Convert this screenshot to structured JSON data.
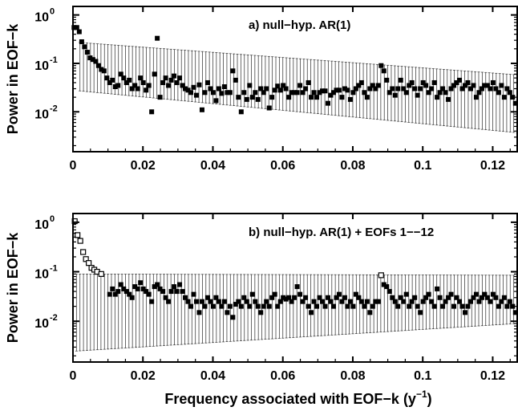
{
  "chart_data": [
    {
      "type": "scatter",
      "title": "a) null−hyp. AR(1)",
      "ylabel": "Power in EOF−k",
      "xlabel": "",
      "xlim": [
        0,
        0.127
      ],
      "ylim": [
        0.0015,
        1.5
      ],
      "yscale": "log",
      "xticks": [
        "0",
        "0.02",
        "0.04",
        "0.06",
        "0.08",
        "0.1",
        "0.12"
      ],
      "yticks": [
        "10",
        "10",
        "10"
      ],
      "ytick_exponents": [
        "0",
        "-1",
        "-2"
      ],
      "grid": false,
      "legend": "none",
      "error_band": {
        "x_start": 0.002,
        "x_end": 0.127,
        "lower_start": 0.027,
        "lower_end": 0.0037,
        "upper_start": 0.27,
        "upper_end": 0.058,
        "step": 0.001
      },
      "points": [
        [
          0.0003,
          0.55
        ],
        [
          0.0011,
          0.55
        ],
        [
          0.0018,
          0.45
        ],
        [
          0.0025,
          0.28
        ],
        [
          0.0033,
          0.22
        ],
        [
          0.0041,
          0.17
        ],
        [
          0.0049,
          0.13
        ],
        [
          0.0057,
          0.12
        ],
        [
          0.0065,
          0.11
        ],
        [
          0.0073,
          0.09
        ],
        [
          0.0081,
          0.075
        ],
        [
          0.0089,
          0.07
        ],
        [
          0.0097,
          0.05
        ],
        [
          0.0105,
          0.04
        ],
        [
          0.0113,
          0.045
        ],
        [
          0.0121,
          0.033
        ],
        [
          0.0129,
          0.035
        ],
        [
          0.0137,
          0.06
        ],
        [
          0.0145,
          0.05
        ],
        [
          0.0153,
          0.04
        ],
        [
          0.0161,
          0.045
        ],
        [
          0.0169,
          0.03
        ],
        [
          0.0177,
          0.035
        ],
        [
          0.0185,
          0.03
        ],
        [
          0.0193,
          0.05
        ],
        [
          0.0201,
          0.04
        ],
        [
          0.0209,
          0.028
        ],
        [
          0.0217,
          0.035
        ],
        [
          0.0225,
          0.01
        ],
        [
          0.0233,
          0.06
        ],
        [
          0.0241,
          0.33
        ],
        [
          0.0249,
          0.02
        ],
        [
          0.0257,
          0.04
        ],
        [
          0.0265,
          0.05
        ],
        [
          0.0273,
          0.035
        ],
        [
          0.0281,
          0.045
        ],
        [
          0.0289,
          0.055
        ],
        [
          0.0297,
          0.04
        ],
        [
          0.0305,
          0.05
        ],
        [
          0.0313,
          0.035
        ],
        [
          0.0321,
          0.03
        ],
        [
          0.0329,
          0.028
        ],
        [
          0.0337,
          0.025
        ],
        [
          0.0345,
          0.032
        ],
        [
          0.0353,
          0.022
        ],
        [
          0.0361,
          0.036
        ],
        [
          0.0369,
          0.011
        ],
        [
          0.0377,
          0.025
        ],
        [
          0.0385,
          0.04
        ],
        [
          0.0393,
          0.03
        ],
        [
          0.0401,
          0.025
        ],
        [
          0.0409,
          0.017
        ],
        [
          0.0417,
          0.03
        ],
        [
          0.0425,
          0.024
        ],
        [
          0.0433,
          0.033
        ],
        [
          0.0441,
          0.025
        ],
        [
          0.0449,
          0.025
        ],
        [
          0.0457,
          0.07
        ],
        [
          0.0465,
          0.045
        ],
        [
          0.0473,
          0.02
        ],
        [
          0.0481,
          0.01
        ],
        [
          0.0489,
          0.025
        ],
        [
          0.0497,
          0.018
        ],
        [
          0.0505,
          0.035
        ],
        [
          0.0513,
          0.02
        ],
        [
          0.0521,
          0.025
        ],
        [
          0.0529,
          0.018
        ],
        [
          0.0537,
          0.03
        ],
        [
          0.0545,
          0.025
        ],
        [
          0.0553,
          0.03
        ],
        [
          0.0561,
          0.012
        ],
        [
          0.0569,
          0.02
        ],
        [
          0.0577,
          0.028
        ],
        [
          0.0585,
          0.034
        ],
        [
          0.0593,
          0.028
        ],
        [
          0.0601,
          0.035
        ],
        [
          0.0609,
          0.03
        ],
        [
          0.0617,
          0.02
        ],
        [
          0.0625,
          0.025
        ],
        [
          0.0633,
          0.025
        ],
        [
          0.0641,
          0.025
        ],
        [
          0.0649,
          0.035
        ],
        [
          0.0657,
          0.025
        ],
        [
          0.0665,
          0.03
        ],
        [
          0.0673,
          0.04
        ],
        [
          0.0681,
          0.02
        ],
        [
          0.0689,
          0.025
        ],
        [
          0.0697,
          0.02
        ],
        [
          0.0705,
          0.025
        ],
        [
          0.0713,
          0.027
        ],
        [
          0.0721,
          0.027
        ],
        [
          0.0729,
          0.015
        ],
        [
          0.0737,
          0.022
        ],
        [
          0.0745,
          0.025
        ],
        [
          0.0753,
          0.028
        ],
        [
          0.0761,
          0.028
        ],
        [
          0.0769,
          0.02
        ],
        [
          0.0777,
          0.03
        ],
        [
          0.0785,
          0.028
        ],
        [
          0.0793,
          0.018
        ],
        [
          0.0801,
          0.025
        ],
        [
          0.0809,
          0.03
        ],
        [
          0.0817,
          0.035
        ],
        [
          0.0825,
          0.04
        ],
        [
          0.0833,
          0.025
        ],
        [
          0.0841,
          0.02
        ],
        [
          0.0849,
          0.03
        ],
        [
          0.0857,
          0.035
        ],
        [
          0.0865,
          0.03
        ],
        [
          0.0873,
          0.035
        ],
        [
          0.0881,
          0.09
        ],
        [
          0.0889,
          0.07
        ],
        [
          0.0897,
          0.045
        ],
        [
          0.0905,
          0.025
        ],
        [
          0.0913,
          0.03
        ],
        [
          0.0921,
          0.022
        ],
        [
          0.0929,
          0.03
        ],
        [
          0.0937,
          0.045
        ],
        [
          0.0945,
          0.03
        ],
        [
          0.0953,
          0.025
        ],
        [
          0.0961,
          0.035
        ],
        [
          0.0969,
          0.04
        ],
        [
          0.0977,
          0.03
        ],
        [
          0.0985,
          0.022
        ],
        [
          0.0993,
          0.03
        ],
        [
          0.1001,
          0.04
        ],
        [
          0.1009,
          0.035
        ],
        [
          0.1017,
          0.025
        ],
        [
          0.1025,
          0.03
        ],
        [
          0.1033,
          0.04
        ],
        [
          0.1041,
          0.02
        ],
        [
          0.1049,
          0.025
        ],
        [
          0.1057,
          0.03
        ],
        [
          0.1065,
          0.025
        ],
        [
          0.1073,
          0.018
        ],
        [
          0.1081,
          0.03
        ],
        [
          0.1089,
          0.035
        ],
        [
          0.1097,
          0.04
        ],
        [
          0.1105,
          0.045
        ],
        [
          0.1113,
          0.03
        ],
        [
          0.1121,
          0.035
        ],
        [
          0.1129,
          0.04
        ],
        [
          0.1137,
          0.03
        ],
        [
          0.1145,
          0.035
        ],
        [
          0.1153,
          0.02
        ],
        [
          0.1161,
          0.025
        ],
        [
          0.1169,
          0.03
        ],
        [
          0.1177,
          0.035
        ],
        [
          0.1185,
          0.035
        ],
        [
          0.1193,
          0.03
        ],
        [
          0.1201,
          0.04
        ],
        [
          0.1209,
          0.03
        ],
        [
          0.1217,
          0.025
        ],
        [
          0.1225,
          0.035
        ],
        [
          0.1233,
          0.02
        ],
        [
          0.1241,
          0.03
        ],
        [
          0.1249,
          0.025
        ],
        [
          0.1257,
          0.02
        ],
        [
          0.1265,
          0.015
        ]
      ],
      "open_points": []
    },
    {
      "type": "scatter",
      "title": "b) null−hyp. AR(1) + EOFs 1−−12",
      "ylabel": "Power in EOF−k",
      "xlabel": "Frequency associated with EOF−k (y",
      "xlabel_superscript": "−1",
      "xlabel_suffix": ")",
      "xlim": [
        0,
        0.127
      ],
      "ylim": [
        0.0015,
        1.5
      ],
      "yscale": "log",
      "xticks": [
        "0",
        "0.02",
        "0.04",
        "0.06",
        "0.08",
        "0.1",
        "0.12"
      ],
      "yticks": [
        "10",
        "10",
        "10"
      ],
      "ytick_exponents": [
        "0",
        "-1",
        "-2"
      ],
      "grid": false,
      "legend": "none",
      "error_band": {
        "x_start": 0.001,
        "x_end": 0.127,
        "lower_start": 0.0025,
        "lower_end": 0.009,
        "upper_start": 0.09,
        "upper_end": 0.085,
        "step": 0.001
      },
      "points": [
        [
          0.0105,
          0.035
        ],
        [
          0.0113,
          0.045
        ],
        [
          0.0121,
          0.035
        ],
        [
          0.0129,
          0.04
        ],
        [
          0.0137,
          0.055
        ],
        [
          0.0145,
          0.045
        ],
        [
          0.0153,
          0.04
        ],
        [
          0.0161,
          0.035
        ],
        [
          0.0169,
          0.03
        ],
        [
          0.0177,
          0.05
        ],
        [
          0.0185,
          0.045
        ],
        [
          0.0193,
          0.06
        ],
        [
          0.0201,
          0.045
        ],
        [
          0.0209,
          0.04
        ],
        [
          0.0217,
          0.035
        ],
        [
          0.0225,
          0.025
        ],
        [
          0.0233,
          0.05
        ],
        [
          0.0241,
          0.055
        ],
        [
          0.0249,
          0.045
        ],
        [
          0.0257,
          0.04
        ],
        [
          0.0265,
          0.03
        ],
        [
          0.0273,
          0.025
        ],
        [
          0.0281,
          0.04
        ],
        [
          0.0289,
          0.05
        ],
        [
          0.0297,
          0.04
        ],
        [
          0.0305,
          0.055
        ],
        [
          0.0313,
          0.04
        ],
        [
          0.0321,
          0.03
        ],
        [
          0.0329,
          0.025
        ],
        [
          0.0337,
          0.02
        ],
        [
          0.0345,
          0.035
        ],
        [
          0.0353,
          0.025
        ],
        [
          0.0361,
          0.015
        ],
        [
          0.0369,
          0.025
        ],
        [
          0.0377,
          0.02
        ],
        [
          0.0385,
          0.03
        ],
        [
          0.0393,
          0.025
        ],
        [
          0.0401,
          0.02
        ],
        [
          0.0409,
          0.03
        ],
        [
          0.0417,
          0.025
        ],
        [
          0.0425,
          0.02
        ],
        [
          0.0433,
          0.025
        ],
        [
          0.0441,
          0.015
        ],
        [
          0.0449,
          0.02
        ],
        [
          0.0457,
          0.012
        ],
        [
          0.0465,
          0.022
        ],
        [
          0.0473,
          0.025
        ],
        [
          0.0481,
          0.02
        ],
        [
          0.0489,
          0.03
        ],
        [
          0.0497,
          0.025
        ],
        [
          0.0505,
          0.02
        ],
        [
          0.0513,
          0.035
        ],
        [
          0.0521,
          0.025
        ],
        [
          0.0529,
          0.02
        ],
        [
          0.0537,
          0.015
        ],
        [
          0.0545,
          0.02
        ],
        [
          0.0553,
          0.025
        ],
        [
          0.0561,
          0.02
        ],
        [
          0.0569,
          0.03
        ],
        [
          0.0577,
          0.035
        ],
        [
          0.0585,
          0.02
        ],
        [
          0.0593,
          0.025
        ],
        [
          0.0601,
          0.03
        ],
        [
          0.0609,
          0.028
        ],
        [
          0.0617,
          0.03
        ],
        [
          0.0625,
          0.025
        ],
        [
          0.0633,
          0.03
        ],
        [
          0.0641,
          0.05
        ],
        [
          0.0649,
          0.035
        ],
        [
          0.0657,
          0.025
        ],
        [
          0.0665,
          0.03
        ],
        [
          0.0673,
          0.02
        ],
        [
          0.0681,
          0.015
        ],
        [
          0.0689,
          0.025
        ],
        [
          0.0697,
          0.02
        ],
        [
          0.0705,
          0.03
        ],
        [
          0.0713,
          0.025
        ],
        [
          0.0721,
          0.02
        ],
        [
          0.0729,
          0.03
        ],
        [
          0.0737,
          0.025
        ],
        [
          0.0745,
          0.02
        ],
        [
          0.0753,
          0.03
        ],
        [
          0.0761,
          0.035
        ],
        [
          0.0769,
          0.025
        ],
        [
          0.0777,
          0.03
        ],
        [
          0.0785,
          0.02
        ],
        [
          0.0793,
          0.025
        ],
        [
          0.0801,
          0.02
        ],
        [
          0.0809,
          0.035
        ],
        [
          0.0817,
          0.03
        ],
        [
          0.0825,
          0.025
        ],
        [
          0.0833,
          0.02
        ],
        [
          0.0841,
          0.025
        ],
        [
          0.0849,
          0.015
        ],
        [
          0.0857,
          0.02
        ],
        [
          0.0865,
          0.025
        ],
        [
          0.0873,
          0.025
        ],
        [
          0.0889,
          0.055
        ],
        [
          0.0897,
          0.05
        ],
        [
          0.0905,
          0.04
        ],
        [
          0.0913,
          0.03
        ],
        [
          0.0921,
          0.025
        ],
        [
          0.0929,
          0.02
        ],
        [
          0.0937,
          0.03
        ],
        [
          0.0945,
          0.025
        ],
        [
          0.0953,
          0.035
        ],
        [
          0.0961,
          0.02
        ],
        [
          0.0969,
          0.025
        ],
        [
          0.0977,
          0.03
        ],
        [
          0.0985,
          0.02
        ],
        [
          0.0993,
          0.015
        ],
        [
          0.1001,
          0.025
        ],
        [
          0.1009,
          0.03
        ],
        [
          0.1017,
          0.035
        ],
        [
          0.1025,
          0.025
        ],
        [
          0.1033,
          0.02
        ],
        [
          0.1041,
          0.045
        ],
        [
          0.1049,
          0.03
        ],
        [
          0.1057,
          0.02
        ],
        [
          0.1065,
          0.025
        ],
        [
          0.1073,
          0.03
        ],
        [
          0.1081,
          0.035
        ],
        [
          0.1089,
          0.02
        ],
        [
          0.1097,
          0.03
        ],
        [
          0.1105,
          0.025
        ],
        [
          0.1113,
          0.02
        ],
        [
          0.1121,
          0.015
        ],
        [
          0.1129,
          0.02
        ],
        [
          0.1137,
          0.025
        ],
        [
          0.1145,
          0.03
        ],
        [
          0.1153,
          0.035
        ],
        [
          0.1161,
          0.025
        ],
        [
          0.1169,
          0.03
        ],
        [
          0.1177,
          0.035
        ],
        [
          0.1185,
          0.03
        ],
        [
          0.1193,
          0.025
        ],
        [
          0.1201,
          0.035
        ],
        [
          0.1209,
          0.03
        ],
        [
          0.1217,
          0.02
        ],
        [
          0.1225,
          0.025
        ],
        [
          0.1233,
          0.03
        ],
        [
          0.1241,
          0.02
        ],
        [
          0.1249,
          0.025
        ],
        [
          0.1257,
          0.02
        ],
        [
          0.1265,
          0.015
        ]
      ],
      "open_points": [
        [
          0.0005,
          1.05
        ],
        [
          0.0013,
          0.55
        ],
        [
          0.0021,
          0.42
        ],
        [
          0.0029,
          0.25
        ],
        [
          0.0037,
          0.18
        ],
        [
          0.0045,
          0.15
        ],
        [
          0.0053,
          0.12
        ],
        [
          0.0061,
          0.11
        ],
        [
          0.0069,
          0.1
        ],
        [
          0.0081,
          0.09
        ],
        [
          0.0881,
          0.085
        ]
      ]
    }
  ]
}
